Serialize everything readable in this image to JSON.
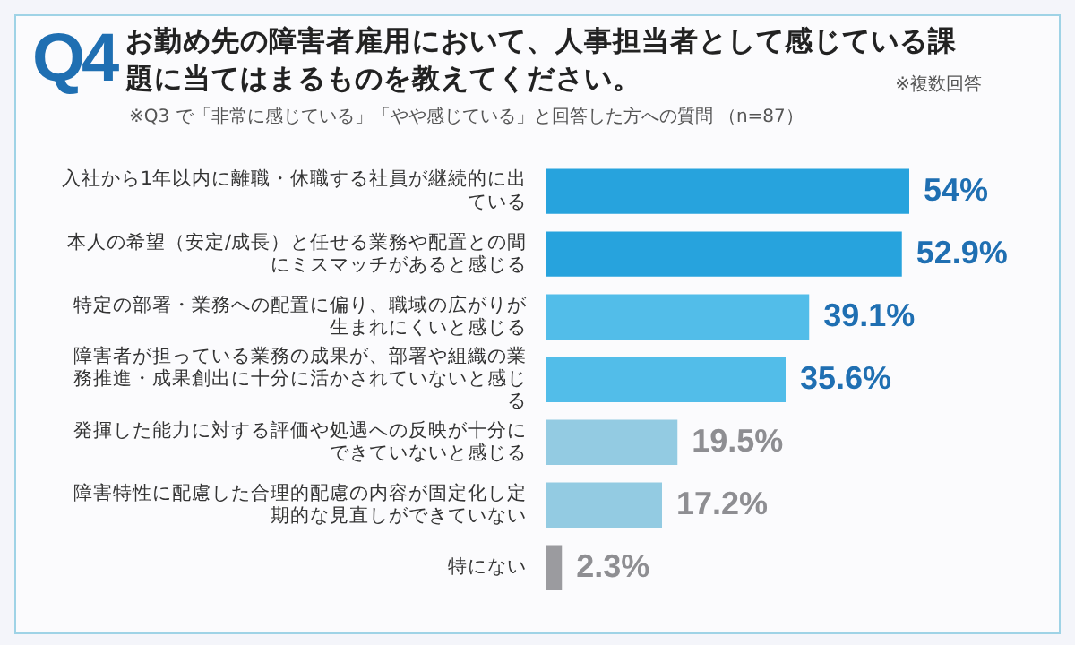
{
  "chart_data": {
    "type": "bar",
    "orientation": "horizontal",
    "title": "お勤め先の障害者雇用において、人事担当者として感じている課題に当てはまるものを教えてください。",
    "annotations": [
      "Q4",
      "※複数回答",
      "※Q3 で「非常に感じている」「やや感じている」と回答した方への質問 （n=87）"
    ],
    "categories": [
      "入社から1年以内に離職・休職する社員が継続的に出ている",
      "本人の希望（安定/成長）と任せる業務や配置との間にミスマッチがあると感じる",
      "特定の部署・業務への配置に偏り、職域の広がりが生まれにくいと感じる",
      "障害者が担っている業務の成果が、部署や組織の業務推進・成果創出に十分に活かされていないと感じる",
      "発揮した能力に対する評価や処遇への反映が十分にできていないと感じる",
      "障害特性に配慮した合理的配慮の内容が固定化し定期的な見直しができていない",
      "特にない"
    ],
    "values": [
      54,
      52.9,
      39.1,
      35.6,
      19.5,
      17.2,
      2.3
    ],
    "colors": [
      "#27a3dd",
      "#27a3dd",
      "#52bde9",
      "#52bde9",
      "#93cbe2",
      "#93cbe2",
      "#9b9b9f"
    ],
    "value_labels": [
      "54%",
      "52.9%",
      "39.1%",
      "35.6%",
      "19.5%",
      "17.2%",
      "2.3%"
    ],
    "legend": false
  }
}
